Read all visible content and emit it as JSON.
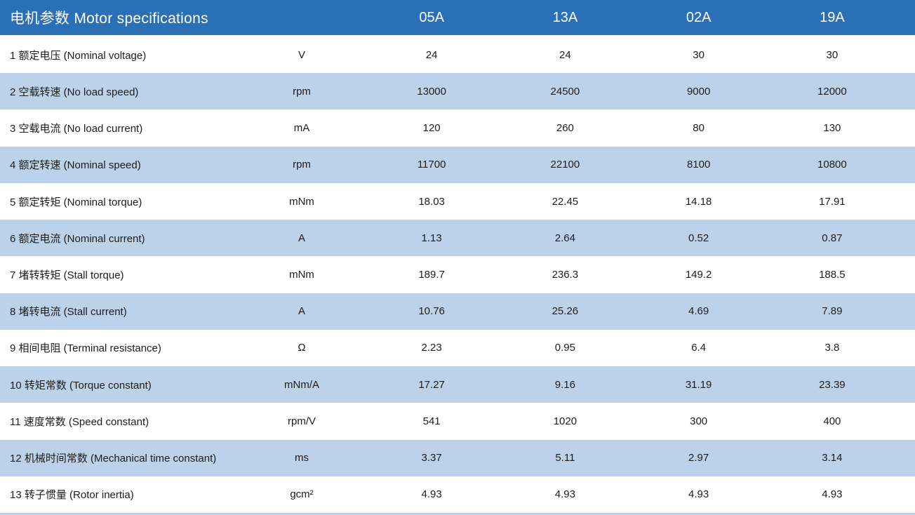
{
  "header": {
    "title": "电机参数  Motor specifications",
    "columns": [
      "05A",
      "13A",
      "02A",
      "19A"
    ]
  },
  "rows": [
    {
      "label": "1 额定电压 (Nominal voltage)",
      "unit": "V",
      "values": [
        "24",
        "24",
        "30",
        "30"
      ]
    },
    {
      "label": "2 空载转速 (No load speed)",
      "unit": "rpm",
      "values": [
        "13000",
        "24500",
        "9000",
        "12000"
      ]
    },
    {
      "label": "3 空载电流 (No load current)",
      "unit": "mA",
      "values": [
        "120",
        "260",
        "80",
        "130"
      ]
    },
    {
      "label": "4 额定转速 (Nominal speed)",
      "unit": "rpm",
      "values": [
        "11700",
        "22100",
        "8100",
        "10800"
      ]
    },
    {
      "label": "5 额定转矩 (Nominal torque)",
      "unit": "mNm",
      "values": [
        "18.03",
        "22.45",
        "14.18",
        "17.91"
      ]
    },
    {
      "label": "6 额定电流 (Nominal current)",
      "unit": "A",
      "values": [
        "1.13",
        "2.64",
        "0.52",
        "0.87"
      ]
    },
    {
      "label": "7 堵转转矩 (Stall torque)",
      "unit": "mNm",
      "values": [
        "189.7",
        "236.3",
        "149.2",
        "188.5"
      ]
    },
    {
      "label": "8 堵转电流 (Stall current)",
      "unit": "A",
      "values": [
        "10.76",
        "25.26",
        "4.69",
        "7.89"
      ]
    },
    {
      "label": "9 相间电阻 (Terminal resistance)",
      "unit": "Ω",
      "values": [
        "2.23",
        "0.95",
        "6.4",
        "3.8"
      ]
    },
    {
      "label": "10 转矩常数 (Torque constant)",
      "unit": "mNm/A",
      "values": [
        "17.27",
        "9.16",
        "31.19",
        "23.39"
      ]
    },
    {
      "label": "11 速度常数 (Speed constant)",
      "unit": "rpm/V",
      "values": [
        "541",
        "1020",
        "300",
        "400"
      ]
    },
    {
      "label": "12 机械时间常数 (Mechanical time constant)",
      "unit": "ms",
      "values": [
        "3.37",
        "5.11",
        "2.97",
        "3.14"
      ]
    },
    {
      "label": "13 转子惯量 (Rotor inertia)",
      "unit": "gcm²",
      "values": [
        "4.93",
        "4.93",
        "4.93",
        "4.93"
      ]
    }
  ],
  "colors": {
    "header_bg": "#2B70B7",
    "header_text": "#FFFFFF",
    "alt_row_bg": "#BCD2E8",
    "text": "#1C1C1C"
  }
}
